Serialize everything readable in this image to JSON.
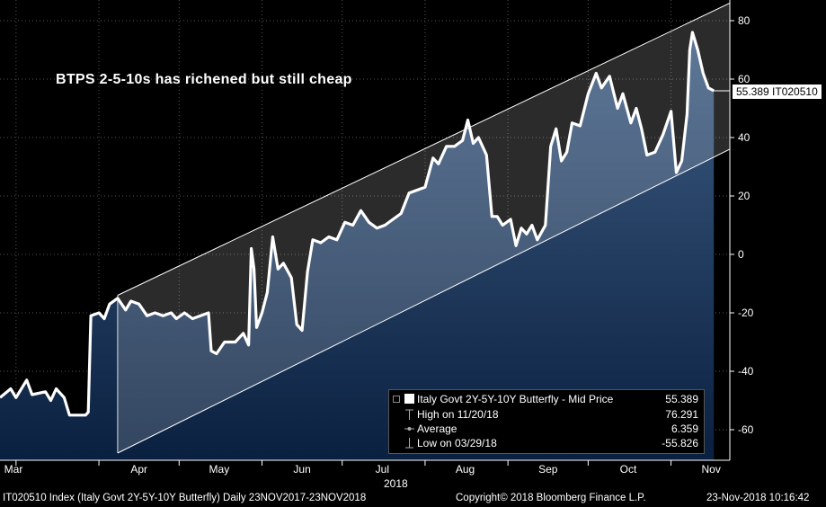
{
  "chart_data": {
    "type": "line",
    "title": "BTPS 2-5-10s has richened but still cheap",
    "x_axis": {
      "month_labels": [
        "Mar",
        "Apr",
        "May",
        "Jun",
        "Jul",
        "Aug",
        "Sep",
        "Oct",
        "Nov"
      ],
      "year_label": "2018",
      "range": [
        "2018-02-23",
        "2018-11-23"
      ]
    },
    "y_axis": {
      "ticks": [
        80,
        60,
        40,
        20,
        0,
        -20,
        -40,
        -60
      ],
      "range": [
        -70,
        85
      ],
      "side": "right"
    },
    "grid": true,
    "series": [
      {
        "name": "Italy Govt 2Y-5Y-10Y Butterfly - Mid Price",
        "color": "#ffffff",
        "points": [
          [
            "2018-02-23",
            -49
          ],
          [
            "2018-02-27",
            -46
          ],
          [
            "2018-03-01",
            -49
          ],
          [
            "2018-03-05",
            -43
          ],
          [
            "2018-03-07",
            -48
          ],
          [
            "2018-03-12",
            -47
          ],
          [
            "2018-03-14",
            -50
          ],
          [
            "2018-03-16",
            -46
          ],
          [
            "2018-03-19",
            -49
          ],
          [
            "2018-03-21",
            -55
          ],
          [
            "2018-03-26",
            -55
          ],
          [
            "2018-03-27",
            -55
          ],
          [
            "2018-03-28",
            -54
          ],
          [
            "2018-03-29",
            -21
          ],
          [
            "2018-04-01",
            -20
          ],
          [
            "2018-04-03",
            -22
          ],
          [
            "2018-04-05",
            -17
          ],
          [
            "2018-04-08",
            -15
          ],
          [
            "2018-04-11",
            -19
          ],
          [
            "2018-04-13",
            -16
          ],
          [
            "2018-04-16",
            -17
          ],
          [
            "2018-04-19",
            -21
          ],
          [
            "2018-04-22",
            -20
          ],
          [
            "2018-04-25",
            -21
          ],
          [
            "2018-04-28",
            -20
          ],
          [
            "2018-04-30",
            -22
          ],
          [
            "2018-05-03",
            -20
          ],
          [
            "2018-05-06",
            -22
          ],
          [
            "2018-05-09",
            -21
          ],
          [
            "2018-05-12",
            -20
          ],
          [
            "2018-05-13",
            -33
          ],
          [
            "2018-05-15",
            -34
          ],
          [
            "2018-05-18",
            -30
          ],
          [
            "2018-05-22",
            -30
          ],
          [
            "2018-05-25",
            -27
          ],
          [
            "2018-05-27",
            -31
          ],
          [
            "2018-05-28",
            2
          ],
          [
            "2018-05-29",
            -5
          ],
          [
            "2018-05-30",
            -25
          ],
          [
            "2018-06-01",
            -20
          ],
          [
            "2018-06-03",
            -13
          ],
          [
            "2018-06-05",
            6
          ],
          [
            "2018-06-07",
            -5
          ],
          [
            "2018-06-09",
            -3
          ],
          [
            "2018-06-12",
            -8
          ],
          [
            "2018-06-14",
            -24
          ],
          [
            "2018-06-16",
            -26
          ],
          [
            "2018-06-18",
            -6
          ],
          [
            "2018-06-20",
            5
          ],
          [
            "2018-06-23",
            4
          ],
          [
            "2018-06-26",
            6
          ],
          [
            "2018-06-29",
            5
          ],
          [
            "2018-07-02",
            11
          ],
          [
            "2018-07-05",
            10
          ],
          [
            "2018-07-08",
            15
          ],
          [
            "2018-07-11",
            11
          ],
          [
            "2018-07-14",
            9
          ],
          [
            "2018-07-17",
            10
          ],
          [
            "2018-07-20",
            12
          ],
          [
            "2018-07-23",
            14
          ],
          [
            "2018-07-26",
            21
          ],
          [
            "2018-07-29",
            22
          ],
          [
            "2018-08-01",
            23
          ],
          [
            "2018-08-04",
            33
          ],
          [
            "2018-08-06",
            31
          ],
          [
            "2018-08-09",
            37
          ],
          [
            "2018-08-12",
            37
          ],
          [
            "2018-08-15",
            39
          ],
          [
            "2018-08-17",
            46
          ],
          [
            "2018-08-19",
            38
          ],
          [
            "2018-08-21",
            40
          ],
          [
            "2018-08-24",
            34
          ],
          [
            "2018-08-26",
            13
          ],
          [
            "2018-08-28",
            13
          ],
          [
            "2018-08-30",
            10
          ],
          [
            "2018-09-02",
            12
          ],
          [
            "2018-09-04",
            3
          ],
          [
            "2018-09-06",
            9
          ],
          [
            "2018-09-08",
            7
          ],
          [
            "2018-09-10",
            10
          ],
          [
            "2018-09-12",
            5
          ],
          [
            "2018-09-15",
            10
          ],
          [
            "2018-09-17",
            37
          ],
          [
            "2018-09-19",
            43
          ],
          [
            "2018-09-21",
            32
          ],
          [
            "2018-09-23",
            35
          ],
          [
            "2018-09-25",
            45
          ],
          [
            "2018-09-28",
            44
          ],
          [
            "2018-10-01",
            55
          ],
          [
            "2018-10-04",
            62
          ],
          [
            "2018-10-06",
            57
          ],
          [
            "2018-10-09",
            61
          ],
          [
            "2018-10-12",
            50
          ],
          [
            "2018-10-14",
            55
          ],
          [
            "2018-10-17",
            45
          ],
          [
            "2018-10-19",
            50
          ],
          [
            "2018-10-21",
            43
          ],
          [
            "2018-10-23",
            34
          ],
          [
            "2018-10-26",
            35
          ],
          [
            "2018-10-29",
            41
          ],
          [
            "2018-11-01",
            49
          ],
          [
            "2018-11-03",
            28
          ],
          [
            "2018-11-05",
            32
          ],
          [
            "2018-11-07",
            48
          ],
          [
            "2018-11-08",
            70
          ],
          [
            "2018-11-09",
            76
          ],
          [
            "2018-11-11",
            70
          ],
          [
            "2018-11-13",
            62
          ],
          [
            "2018-11-15",
            57
          ],
          [
            "2018-11-17",
            56
          ]
        ]
      }
    ],
    "channel": {
      "upper": [
        [
          "2018-04-08",
          -14
        ],
        [
          "2018-11-23",
          86
        ]
      ],
      "lower": [
        [
          "2018-04-08",
          -68
        ],
        [
          "2018-11-23",
          36
        ]
      ]
    },
    "last_value_tag": "55.389 IT020510",
    "legend": {
      "title_label": "Italy Govt 2Y-5Y-10Y Butterfly - Mid Price",
      "title_value": "55.389",
      "high_label": "High on 11/20/18",
      "high_value": "76.291",
      "avg_label": "Average",
      "avg_value": "6.359",
      "low_label": "Low on 03/29/18",
      "low_value": "-55.826"
    }
  },
  "footer": {
    "left": "IT020510 Index (Italy Govt 2Y-5Y-10Y Butterfly)  Daily 23NOV2017-23NOV2018",
    "center": "Copyright© 2018 Bloomberg Finance L.P.",
    "right": "23-Nov-2018 10:16:42"
  },
  "colors": {
    "background": "#000000",
    "area_top": "#355377",
    "area_bottom": "#0c2344",
    "channel_fill": "#ffffff",
    "line": "#ffffff"
  }
}
